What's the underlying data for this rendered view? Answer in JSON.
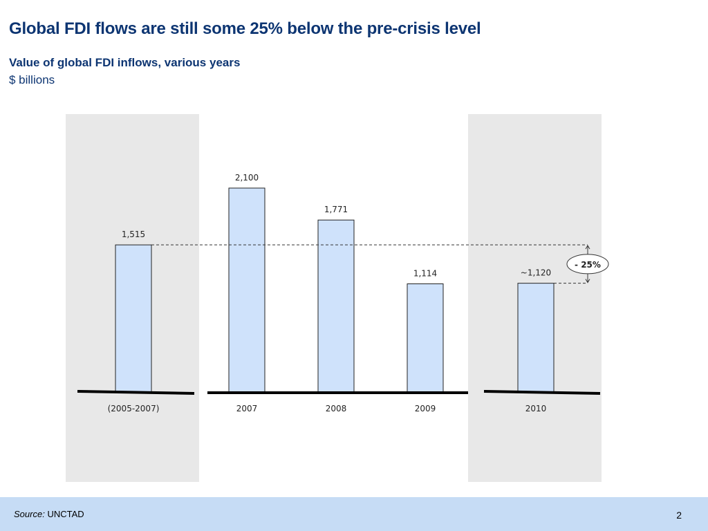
{
  "slide": {
    "title": "Global FDI flows are still some 25% below the pre-crisis level",
    "subtitle": "Value of global FDI inflows, various years",
    "unit": "$ billions",
    "source_label": "Source:",
    "source_value": "UNCTAD",
    "page_number": "2"
  },
  "chart_data": {
    "type": "bar",
    "title": "Value of global FDI inflows, various years",
    "ylabel": "$ billions",
    "categories": [
      "(2005-2007)",
      "2007",
      "2008",
      "2009",
      "2010"
    ],
    "values": [
      1515,
      2100,
      1771,
      1114,
      1120
    ],
    "data_labels": [
      "1,515",
      "2,100",
      "1,771",
      "1,114",
      "~1,120"
    ],
    "annotation": "- 25%",
    "highlighted_categories": [
      "(2005-2007)",
      "2010"
    ],
    "grid": false,
    "colors": {
      "bar_fill": "#cfe2fb",
      "bar_stroke": "#222222",
      "highlight_panel": "#e8e8e8",
      "baseline": "#000000"
    }
  }
}
